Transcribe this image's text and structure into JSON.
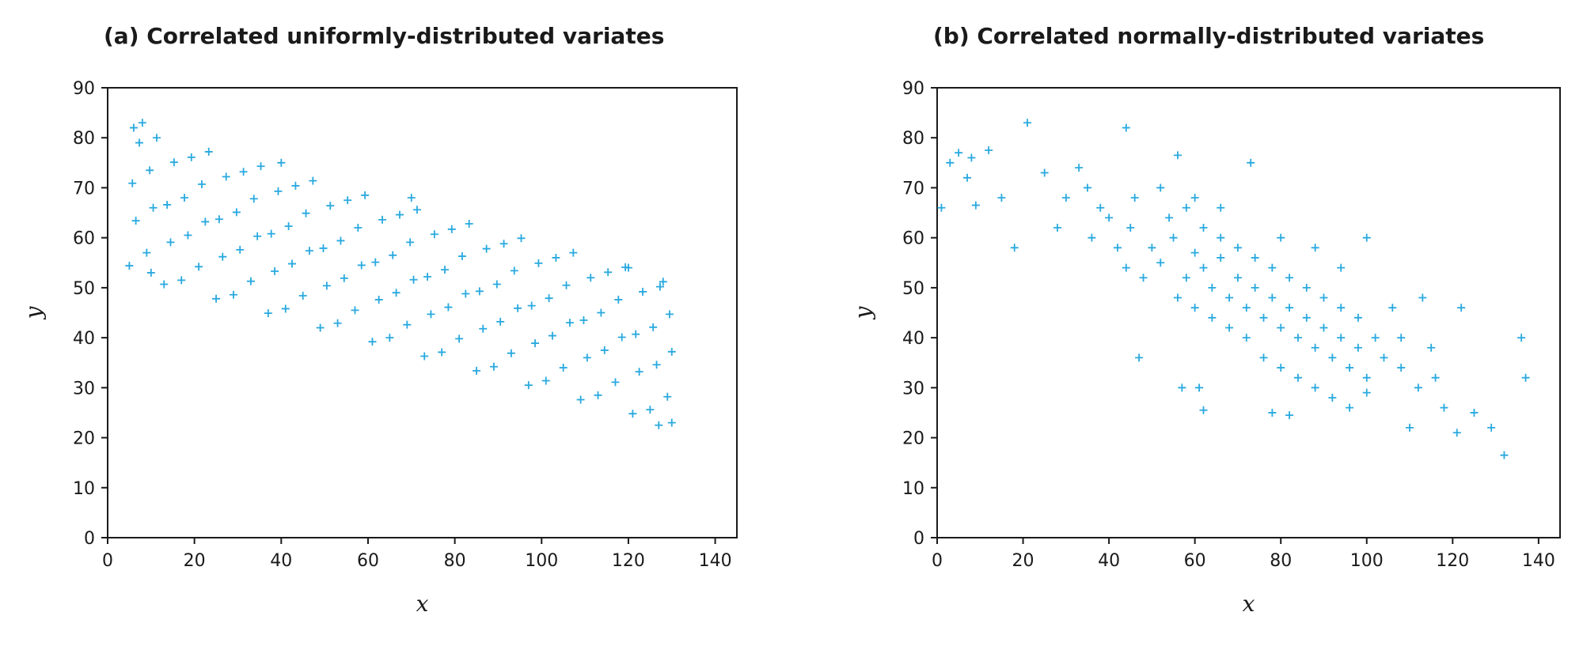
{
  "chart_data": [
    {
      "type": "scatter",
      "title": "(a) Correlated uniformly-distributed variates",
      "xlabel": "x",
      "ylabel": "y",
      "color": "#29a9df",
      "marker": "+",
      "xlim": [
        0,
        145
      ],
      "ylim": [
        0,
        90
      ],
      "xticks": [
        0,
        20,
        40,
        60,
        80,
        100,
        120,
        140
      ],
      "yticks": [
        0,
        10,
        20,
        30,
        40,
        50,
        60,
        70,
        80,
        90
      ],
      "x": [
        5,
        6.5,
        5.7,
        7.3,
        9,
        10.5,
        9.7,
        11.3,
        13,
        14.5,
        13.7,
        15.3,
        17,
        18.5,
        17.7,
        19.3,
        21,
        22.5,
        21.7,
        23.3,
        25,
        26.5,
        25.7,
        27.3,
        29,
        30.5,
        29.7,
        31.3,
        33,
        34.5,
        33.7,
        35.3,
        37,
        38.5,
        37.7,
        39.3,
        41,
        42.5,
        41.7,
        43.3,
        45,
        46.5,
        45.7,
        47.3,
        49,
        50.5,
        49.7,
        51.3,
        53,
        54.5,
        53.7,
        55.3,
        57,
        58.5,
        57.7,
        59.3,
        61,
        62.5,
        61.7,
        63.3,
        65,
        66.5,
        65.7,
        67.3,
        69,
        70.5,
        69.7,
        71.3,
        73,
        74.5,
        73.7,
        75.3,
        77,
        78.5,
        77.7,
        79.3,
        81,
        82.5,
        81.7,
        83.3,
        85,
        86.5,
        85.7,
        87.3,
        89,
        90.5,
        89.7,
        91.3,
        93,
        94.5,
        93.7,
        95.3,
        97,
        98.5,
        97.7,
        99.3,
        101,
        102.5,
        101.7,
        103.3,
        105,
        106.5,
        105.7,
        107.3,
        109,
        110.5,
        109.7,
        111.3,
        113,
        114.5,
        113.7,
        115.3,
        117,
        118.5,
        117.7,
        119.3,
        121,
        122.5,
        121.7,
        123.3,
        125,
        126.5,
        125.7,
        127.3,
        129,
        130,
        129.5,
        128,
        6,
        8,
        10,
        127,
        130,
        120,
        70,
        40
      ],
      "y": [
        54.4,
        63.4,
        70.9,
        79,
        57,
        66,
        73.5,
        80,
        50.7,
        59.1,
        66.6,
        75.1,
        51.5,
        60.5,
        68,
        76.1,
        54.2,
        63.2,
        70.7,
        77.2,
        47.8,
        56.2,
        63.7,
        72.2,
        48.6,
        57.6,
        65.1,
        73.2,
        51.3,
        60.3,
        67.8,
        74.3,
        44.9,
        53.3,
        60.8,
        69.3,
        45.8,
        54.8,
        62.3,
        70.4,
        48.4,
        57.4,
        64.9,
        71.4,
        42,
        50.4,
        57.9,
        66.4,
        42.9,
        51.9,
        59.4,
        67.5,
        45.5,
        54.5,
        62,
        68.5,
        39.2,
        47.6,
        55.1,
        63.6,
        40,
        49,
        56.5,
        64.6,
        42.6,
        51.6,
        59.1,
        65.6,
        36.3,
        44.7,
        52.2,
        60.7,
        37.1,
        46.1,
        53.6,
        61.7,
        39.8,
        48.8,
        56.3,
        62.8,
        33.4,
        41.8,
        49.3,
        57.8,
        34.2,
        43.2,
        50.7,
        58.8,
        36.9,
        45.9,
        53.4,
        59.9,
        30.5,
        38.9,
        46.4,
        54.9,
        31.4,
        40.4,
        47.9,
        56,
        34,
        43,
        50.5,
        57,
        27.6,
        36,
        43.5,
        52,
        28.5,
        37.5,
        45,
        53.1,
        31.1,
        40.1,
        47.6,
        54.1,
        24.8,
        33.2,
        40.7,
        49.2,
        25.6,
        34.6,
        42.1,
        50.2,
        28.2,
        37.2,
        44.7,
        51.2,
        82,
        83,
        53,
        22.5,
        23,
        54,
        68,
        75
      ]
    },
    {
      "type": "scatter",
      "title": "(b) Correlated normally-distributed variates",
      "xlabel": "x",
      "ylabel": "y",
      "color": "#29a9df",
      "marker": "+",
      "xlim": [
        0,
        145
      ],
      "ylim": [
        0,
        90
      ],
      "xticks": [
        0,
        20,
        40,
        60,
        80,
        100,
        120,
        140
      ],
      "yticks": [
        0,
        10,
        20,
        30,
        40,
        50,
        60,
        70,
        80,
        90
      ],
      "x": [
        50,
        52,
        55,
        58,
        60,
        62,
        64,
        66,
        68,
        70,
        72,
        74,
        76,
        78,
        80,
        82,
        84,
        86,
        88,
        90,
        92,
        94,
        96,
        98,
        100,
        45,
        48,
        42,
        40,
        38,
        35,
        33,
        36,
        44,
        54,
        58,
        62,
        66,
        70,
        74,
        78,
        82,
        86,
        90,
        94,
        98,
        102,
        104,
        106,
        56,
        60,
        64,
        68,
        72,
        76,
        80,
        84,
        88,
        92,
        96,
        100,
        108,
        112,
        116,
        28,
        30,
        25,
        46,
        52,
        60,
        66,
        80,
        88,
        94,
        100,
        47,
        57,
        61,
        62,
        78,
        82,
        108,
        115,
        118,
        1,
        3,
        5,
        7,
        8,
        9,
        12,
        15,
        18,
        21,
        44,
        56,
        73,
        132,
        136,
        137,
        129,
        110,
        121,
        122,
        125,
        113
      ],
      "y": [
        58,
        55,
        60,
        52,
        57,
        54,
        50,
        56,
        48,
        52,
        46,
        50,
        44,
        48,
        42,
        46,
        40,
        44,
        38,
        42,
        36,
        40,
        34,
        38,
        32,
        62,
        52,
        58,
        64,
        66,
        70,
        74,
        60,
        54,
        64,
        66,
        62,
        60,
        58,
        56,
        54,
        52,
        50,
        48,
        46,
        44,
        40,
        36,
        46,
        48,
        46,
        44,
        42,
        40,
        36,
        34,
        32,
        30,
        28,
        26,
        29,
        34,
        30,
        32,
        62,
        68,
        73,
        68,
        70,
        68,
        66,
        60,
        58,
        54,
        60,
        36,
        30,
        30,
        25.5,
        25,
        24.5,
        40,
        38,
        26,
        66,
        75,
        77,
        72,
        76,
        66.5,
        77.5,
        68,
        58,
        83,
        82,
        76.5,
        75,
        16.5,
        40,
        32,
        22,
        22,
        21,
        46,
        25,
        48
      ]
    }
  ]
}
